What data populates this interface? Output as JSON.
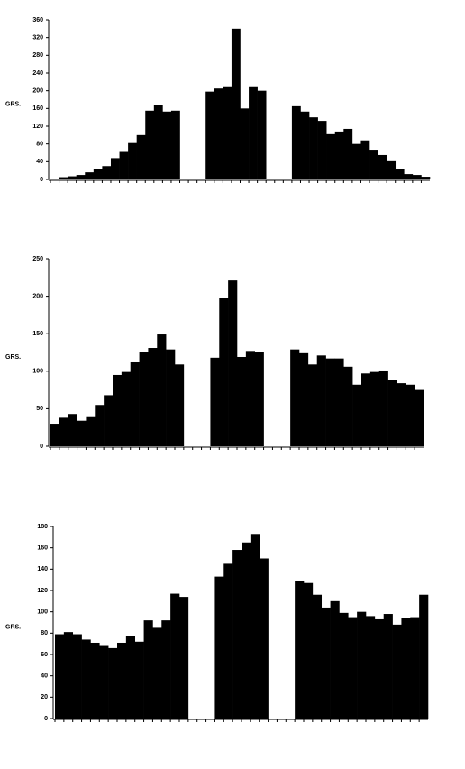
{
  "chart_data": [
    {
      "type": "bar",
      "y_label": "GRS.",
      "color": "#000000",
      "categories": [
        null,
        null,
        null,
        null,
        null,
        null,
        null,
        null,
        null,
        null,
        null,
        null,
        null,
        null,
        null,
        null,
        null,
        null,
        null,
        null,
        null,
        null,
        null,
        null,
        null,
        null,
        null,
        null,
        null,
        null,
        null,
        null,
        null,
        null,
        null,
        null,
        null,
        null,
        null,
        null,
        null,
        null,
        null,
        null
      ],
      "values": [
        2,
        5,
        7,
        10,
        16,
        24,
        30,
        48,
        62,
        82,
        100,
        155,
        167,
        153,
        155,
        null,
        null,
        null,
        198,
        205,
        210,
        340,
        160,
        210,
        200,
        null,
        null,
        null,
        165,
        153,
        140,
        132,
        102,
        108,
        114,
        80,
        88,
        67,
        55,
        41,
        24,
        12,
        10,
        6
      ],
      "ylim": [
        0,
        360
      ],
      "yticks": [
        0,
        40,
        80,
        120,
        160,
        200,
        240,
        280,
        320,
        360
      ]
    },
    {
      "type": "bar",
      "y_label": "GRS.",
      "color": "#000000",
      "categories": [
        null,
        null,
        null,
        null,
        null,
        null,
        null,
        null,
        null,
        null,
        null,
        null,
        null,
        null,
        null,
        null,
        null,
        null,
        null,
        null,
        null,
        null,
        null,
        null,
        null,
        null,
        null,
        null,
        null,
        null,
        null,
        null,
        null,
        null,
        null,
        null,
        null,
        null,
        null,
        null,
        null,
        null
      ],
      "values": [
        30,
        38,
        43,
        34,
        40,
        55,
        68,
        95,
        99,
        113,
        125,
        131,
        149,
        129,
        109,
        null,
        null,
        null,
        118,
        198,
        221,
        119,
        127,
        125,
        null,
        null,
        null,
        129,
        124,
        109,
        121,
        117,
        117,
        106,
        82,
        97,
        99,
        101,
        88,
        84,
        82,
        75
      ],
      "ylim": [
        0,
        250
      ],
      "yticks": [
        0,
        50,
        100,
        150,
        200,
        250
      ]
    },
    {
      "type": "bar",
      "y_label": "GRS.",
      "color": "#000000",
      "categories": [
        null,
        null,
        null,
        null,
        null,
        null,
        null,
        null,
        null,
        null,
        null,
        null,
        null,
        null,
        null,
        null,
        null,
        null,
        null,
        null,
        null,
        null,
        null,
        null,
        null,
        null,
        null,
        null,
        null,
        null,
        null,
        null,
        null,
        null,
        null,
        null,
        null,
        null,
        null,
        null,
        null,
        null
      ],
      "values": [
        79,
        81,
        79,
        74,
        71,
        68,
        66,
        71,
        77,
        72,
        92,
        85,
        92,
        117,
        114,
        null,
        null,
        null,
        133,
        145,
        158,
        165,
        173,
        150,
        null,
        null,
        null,
        129,
        127,
        116,
        104,
        110,
        99,
        95,
        100,
        96,
        93,
        98,
        88,
        94,
        95,
        116
      ],
      "ylim": [
        0,
        180
      ],
      "yticks": [
        0,
        20,
        40,
        60,
        80,
        100,
        120,
        140,
        160,
        180
      ]
    }
  ]
}
